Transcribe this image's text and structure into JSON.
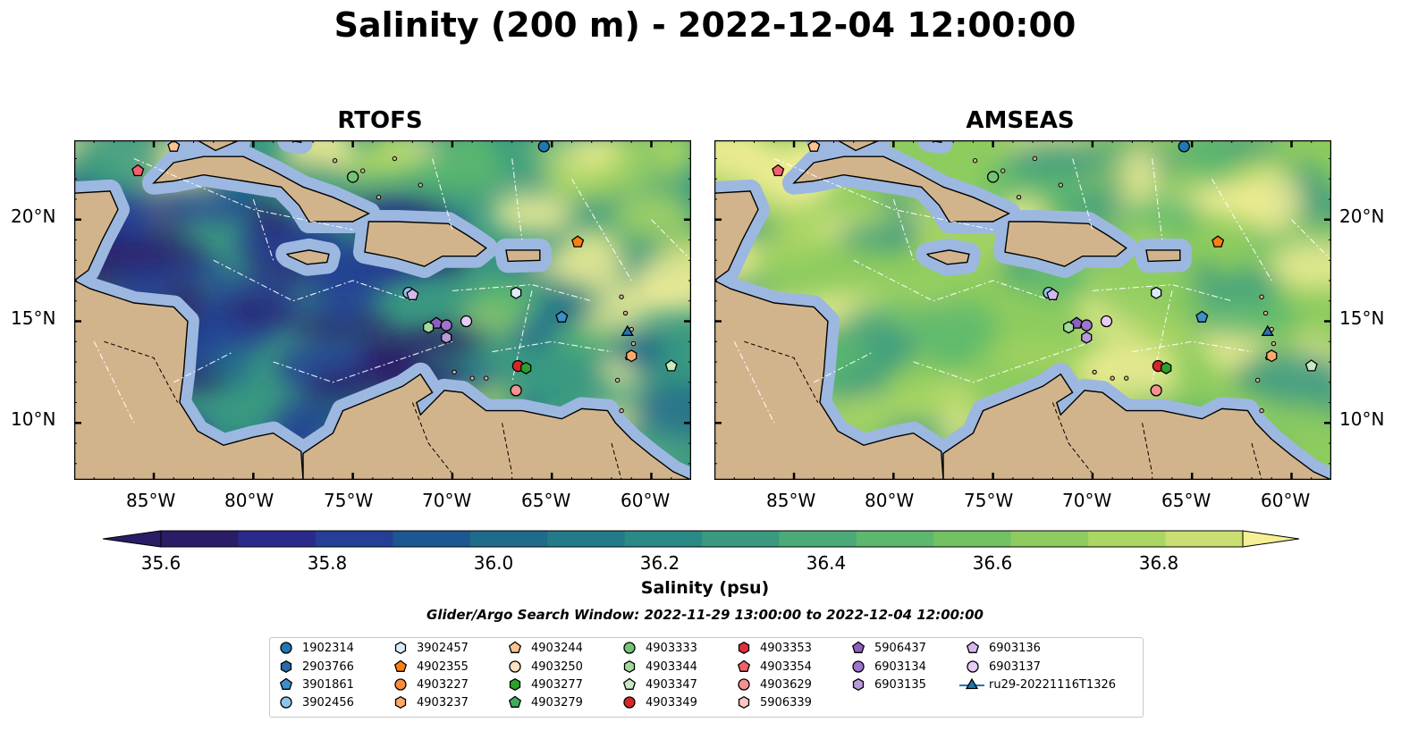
{
  "title": "Salinity (200 m) - 2022-12-04 12:00:00",
  "panels": [
    {
      "title": "RTOFS"
    },
    {
      "title": "AMSEAS"
    }
  ],
  "lon_ticks": [
    "85°W",
    "80°W",
    "75°W",
    "70°W",
    "65°W",
    "60°W"
  ],
  "lat_ticks": [
    "20°N",
    "15°N",
    "10°N"
  ],
  "colorbar": {
    "label": "Salinity (psu)",
    "ticks": [
      "35.6",
      "35.8",
      "36.0",
      "36.2",
      "36.4",
      "36.6",
      "36.8"
    ],
    "colors": [
      "#2b1c68",
      "#2a2a8d",
      "#243f95",
      "#1d5791",
      "#1e6b8c",
      "#237b89",
      "#2a8a86",
      "#3a9a81",
      "#4aab78",
      "#5cb86e",
      "#72c264",
      "#8ecc5f",
      "#aad663",
      "#c9df72"
    ]
  },
  "search_window": "Glider/Argo Search Window: 2022-11-29 13:00:00 to 2022-12-04 12:00:00",
  "legend": {
    "columns": [
      [
        {
          "label": "1902314",
          "marker": "circle",
          "color": "#1f77b4"
        },
        {
          "label": "2903766",
          "marker": "hexagon",
          "color": "#2b6aa6"
        },
        {
          "label": "3901861",
          "marker": "pentagon",
          "color": "#3d8fc8"
        },
        {
          "label": "3902456",
          "marker": "circle",
          "color": "#8ec6ea"
        }
      ],
      [
        {
          "label": "3902457",
          "marker": "hexagon",
          "color": "#d9ecf8"
        },
        {
          "label": "4902355",
          "marker": "pentagon",
          "color": "#ff7f0e"
        },
        {
          "label": "4903227",
          "marker": "circle",
          "color": "#fd8d3c"
        },
        {
          "label": "4903237",
          "marker": "hexagon",
          "color": "#fdab67"
        }
      ],
      [
        {
          "label": "4903244",
          "marker": "pentagon",
          "color": "#fdc48f"
        },
        {
          "label": "4903250",
          "marker": "circle",
          "color": "#fee0c2"
        },
        {
          "label": "4903277",
          "marker": "hexagon",
          "color": "#2ca02c"
        },
        {
          "label": "4903279",
          "marker": "pentagon",
          "color": "#41ab5d"
        }
      ],
      [
        {
          "label": "4903333",
          "marker": "circle",
          "color": "#74c476"
        },
        {
          "label": "4903344",
          "marker": "hexagon",
          "color": "#a1d99b"
        },
        {
          "label": "4903347",
          "marker": "pentagon",
          "color": "#c7e9c0"
        },
        {
          "label": "4903349",
          "marker": "circle",
          "color": "#d62728"
        }
      ],
      [
        {
          "label": "4903353",
          "marker": "hexagon",
          "color": "#e0303a"
        },
        {
          "label": "4903354",
          "marker": "pentagon",
          "color": "#f0616b"
        },
        {
          "label": "4903629",
          "marker": "circle",
          "color": "#f4928f"
        },
        {
          "label": "5906339",
          "marker": "hexagon",
          "color": "#fcc5c0"
        }
      ],
      [
        {
          "label": "5906437",
          "marker": "pentagon",
          "color": "#8c5fc1"
        },
        {
          "label": "6903134",
          "marker": "circle",
          "color": "#9e74cf"
        },
        {
          "label": "6903135",
          "marker": "hexagon",
          "color": "#b69ad9"
        }
      ],
      [
        {
          "label": "6903136",
          "marker": "pentagon",
          "color": "#d4b8ee"
        },
        {
          "label": "6903137",
          "marker": "circle",
          "color": "#e5cdf7"
        },
        {
          "label": "ru29-20221116T1326",
          "marker": "triangle-line",
          "color": "#1f77b4"
        }
      ]
    ]
  },
  "palette": {
    "land": "#d2b48c",
    "shelf": "#9cb8e0",
    "rtofs_ocean": [
      "#2b1c68",
      "#243f95",
      "#1e6b8c",
      "#3a9a81",
      "#5cb86e",
      "#aad663",
      "#f5ef96"
    ],
    "amseas_ocean": [
      "#3a9a81",
      "#5cb86e",
      "#8ecc5f",
      "#aad663",
      "#f5ef96"
    ]
  },
  "markers_on_map": [
    {
      "label": "1902314",
      "lon": -65.4,
      "lat": 23.6
    },
    {
      "label": "4903333",
      "lon": -75.0,
      "lat": 22.1
    },
    {
      "label": "4902355",
      "lon": -63.7,
      "lat": 18.9
    },
    {
      "label": "3902456",
      "lon": -72.2,
      "lat": 16.4
    },
    {
      "label": "6903136",
      "lon": -72.0,
      "lat": 16.3
    },
    {
      "label": "3902457",
      "lon": -66.8,
      "lat": 16.4
    },
    {
      "label": "3901861",
      "lon": -64.5,
      "lat": 15.2
    },
    {
      "label": "5906437",
      "lon": -70.8,
      "lat": 14.9
    },
    {
      "label": "6903134",
      "lon": -70.3,
      "lat": 14.8
    },
    {
      "label": "6903135",
      "lon": -70.3,
      "lat": 14.2
    },
    {
      "label": "6903137",
      "lon": -69.3,
      "lat": 15.0
    },
    {
      "label": "4903344",
      "lon": -71.2,
      "lat": 14.7
    },
    {
      "label": "4903349",
      "lon": -66.7,
      "lat": 12.8
    },
    {
      "label": "4903277",
      "lon": -66.3,
      "lat": 12.7
    },
    {
      "label": "4903629",
      "lon": -66.8,
      "lat": 11.6
    },
    {
      "label": "4903354",
      "lon": -85.8,
      "lat": 22.4
    },
    {
      "label": "4903244",
      "lon": -84.0,
      "lat": 23.6
    },
    {
      "label": "4903237",
      "lon": -61.0,
      "lat": 13.3
    },
    {
      "label": "4903347",
      "lon": -59.0,
      "lat": 12.8
    },
    {
      "label": "ru29-20221116T1326",
      "lon": -61.2,
      "lat": 14.5
    }
  ]
}
